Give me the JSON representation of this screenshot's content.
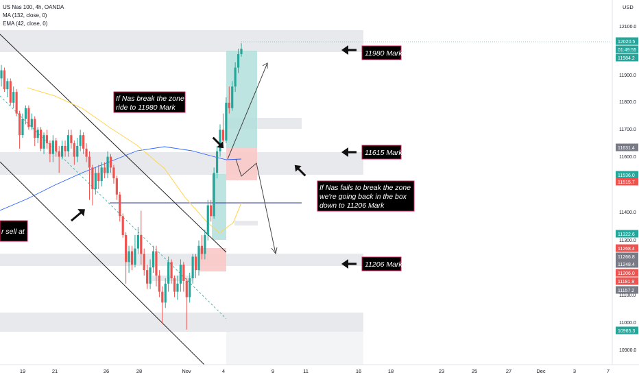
{
  "header": {
    "symbol_line": "US Nas 100, 4h, OANDA",
    "ma_line": "MA (132, close, 0)",
    "ema_line": "EMA (42, close, 0)"
  },
  "currency": "USD",
  "price_ticks": [
    "12100.0",
    "11900.0",
    "11800.0",
    "11700.0",
    "11600.0",
    "11400.0",
    "11300.0",
    "11100.0",
    "11000.0",
    "10900.0"
  ],
  "price_tags": [
    {
      "text": "12020.5",
      "color": "#26a69a"
    },
    {
      "text": "01:49:55",
      "color": "#26a69a"
    },
    {
      "text": "11984.2",
      "color": "#26a69a"
    },
    {
      "text": "11631.4",
      "color": "#787b86"
    },
    {
      "text": "11536.0",
      "color": "#26a69a"
    },
    {
      "text": "11515.7",
      "color": "#ef5350"
    },
    {
      "text": "11322.6",
      "color": "#26a69a"
    },
    {
      "text": "11268.4",
      "color": "#ef5350"
    },
    {
      "text": "11266.8",
      "color": "#787b86"
    },
    {
      "text": "11248.4",
      "color": "#787b86"
    },
    {
      "text": "11206.0",
      "color": "#ef5350"
    },
    {
      "text": "11181.9",
      "color": "#ef5350"
    },
    {
      "text": "11157.2",
      "color": "#787b86"
    },
    {
      "text": "10965.3",
      "color": "#26a69a"
    }
  ],
  "date_ticks": [
    "19",
    "21",
    "26",
    "28",
    "Nov",
    "4",
    "9",
    "11",
    "16",
    "18",
    "23",
    "25",
    "27",
    "Dec",
    "3",
    "7"
  ],
  "annotations": {
    "note_break": [
      "If Nas break the zone",
      "ride to 11980 Mark"
    ],
    "note_fail": [
      "If Nas fails to break the zone",
      "we're going back in the box",
      "down to 11206 Mark"
    ],
    "note_left": [
      "r sell at"
    ],
    "mark_top": "11980 Mark",
    "mark_mid": "11615 Mark",
    "mark_low": "11206 Mark"
  },
  "colors": {
    "up": "#26a69a",
    "down": "#ef5350",
    "zone": "#e8e9ec",
    "ma": "#2962ff",
    "ema": "#ffd54f",
    "label_bg": "#000000",
    "label_border": "#e91e63"
  },
  "chart_data": {
    "type": "candlestick",
    "instrument": "US Nas 100",
    "timeframe": "4h",
    "source": "OANDA",
    "indicators": [
      "MA (132, close, 0)",
      "EMA (42, close, 0)"
    ],
    "ylim": [
      10850,
      12175
    ],
    "last_price": 12020.5,
    "candles": [
      [
        11910,
        11940,
        11880,
        11960
      ],
      [
        11940,
        11870,
        11860,
        11950
      ],
      [
        11870,
        11900,
        11840,
        11910
      ],
      [
        11900,
        11820,
        11810,
        11910
      ],
      [
        11820,
        11860,
        11800,
        11880
      ],
      [
        11860,
        11780,
        11770,
        11870
      ],
      [
        11780,
        11700,
        11650,
        11790
      ],
      [
        11700,
        11760,
        11690,
        11780
      ],
      [
        11760,
        11800,
        11740,
        11810
      ],
      [
        11800,
        11730,
        11720,
        11810
      ],
      [
        11730,
        11760,
        11720,
        11780
      ],
      [
        11760,
        11690,
        11660,
        11770
      ],
      [
        11690,
        11720,
        11670,
        11730
      ],
      [
        11720,
        11650,
        11640,
        11730
      ],
      [
        11650,
        11700,
        11630,
        11710
      ],
      [
        11700,
        11670,
        11650,
        11720
      ],
      [
        11670,
        11630,
        11600,
        11680
      ],
      [
        11630,
        11680,
        11600,
        11700
      ],
      [
        11680,
        11640,
        11620,
        11690
      ],
      [
        11640,
        11620,
        11560,
        11660
      ],
      [
        11620,
        11660,
        11610,
        11680
      ],
      [
        11660,
        11640,
        11620,
        11680
      ],
      [
        11640,
        11700,
        11620,
        11720
      ],
      [
        11700,
        11670,
        11650,
        11720
      ],
      [
        11670,
        11620,
        11590,
        11680
      ],
      [
        11620,
        11660,
        11600,
        11690
      ],
      [
        11660,
        11700,
        11640,
        11720
      ],
      [
        11700,
        11650,
        11630,
        11710
      ],
      [
        11650,
        11620,
        11600,
        11670
      ],
      [
        11620,
        11580,
        11460,
        11640
      ],
      [
        11580,
        11500,
        11440,
        11590
      ],
      [
        11500,
        11560,
        11480,
        11580
      ],
      [
        11560,
        11530,
        11500,
        11590
      ],
      [
        11530,
        11580,
        11510,
        11600
      ],
      [
        11580,
        11560,
        11540,
        11600
      ],
      [
        11560,
        11620,
        11540,
        11640
      ],
      [
        11620,
        11580,
        11560,
        11630
      ],
      [
        11580,
        11540,
        11520,
        11590
      ],
      [
        11540,
        11480,
        11460,
        11550
      ],
      [
        11480,
        11400,
        11380,
        11490
      ],
      [
        11400,
        11330,
        11320,
        11410
      ],
      [
        11330,
        11230,
        11150,
        11340
      ],
      [
        11230,
        11270,
        11190,
        11290
      ],
      [
        11270,
        11220,
        11200,
        11290
      ],
      [
        11220,
        11280,
        11210,
        11330
      ],
      [
        11280,
        11330,
        11260,
        11360
      ],
      [
        11330,
        11260,
        11220,
        11420
      ],
      [
        11260,
        11200,
        11180,
        11280
      ],
      [
        11200,
        11150,
        11130,
        11220
      ],
      [
        11150,
        11210,
        11130,
        11240
      ],
      [
        11210,
        11270,
        11190,
        11290
      ],
      [
        11270,
        11180,
        11140,
        11290
      ],
      [
        11180,
        11120,
        11100,
        11200
      ],
      [
        11120,
        11080,
        11000,
        11140
      ],
      [
        11080,
        11150,
        11060,
        11170
      ],
      [
        11150,
        11230,
        11120,
        11250
      ],
      [
        11230,
        11170,
        11150,
        11240
      ],
      [
        11170,
        11120,
        11100,
        11180
      ],
      [
        11120,
        11150,
        11090,
        11180
      ],
      [
        11150,
        11220,
        11120,
        11240
      ],
      [
        11220,
        11160,
        11120,
        11230
      ],
      [
        11160,
        11100,
        10980,
        11170
      ],
      [
        11100,
        11170,
        11080,
        11190
      ],
      [
        11170,
        11250,
        11150,
        11260
      ],
      [
        11250,
        11200,
        11170,
        11260
      ],
      [
        11200,
        11290,
        11180,
        11310
      ],
      [
        11290,
        11260,
        11240,
        11330
      ],
      [
        11260,
        11330,
        11240,
        11350
      ],
      [
        11330,
        11440,
        11310,
        11460
      ],
      [
        11440,
        11400,
        11380,
        11460
      ],
      [
        11400,
        11560,
        11390,
        11580
      ],
      [
        11560,
        11640,
        11540,
        11660
      ],
      [
        11640,
        11720,
        11620,
        11740
      ],
      [
        11720,
        11680,
        11660,
        11780
      ],
      [
        11680,
        11820,
        11670,
        11840
      ],
      [
        11820,
        11800,
        11780,
        11880
      ],
      [
        11800,
        11880,
        11790,
        11900
      ],
      [
        11880,
        11950,
        11860,
        11970
      ],
      [
        11950,
        12000,
        11930,
        12020
      ],
      [
        12000,
        12020,
        11990,
        12040
      ]
    ],
    "zones": [
      {
        "from": 11960,
        "to": 12030
      },
      {
        "from": 11680,
        "to": 11720
      },
      {
        "from": 11540,
        "to": 11610
      },
      {
        "from": 11215,
        "to": 11255
      },
      {
        "from": 10965,
        "to": 11015
      }
    ],
    "horizontal_line": 11436,
    "mark_levels": [
      11980,
      11615,
      11206
    ]
  }
}
